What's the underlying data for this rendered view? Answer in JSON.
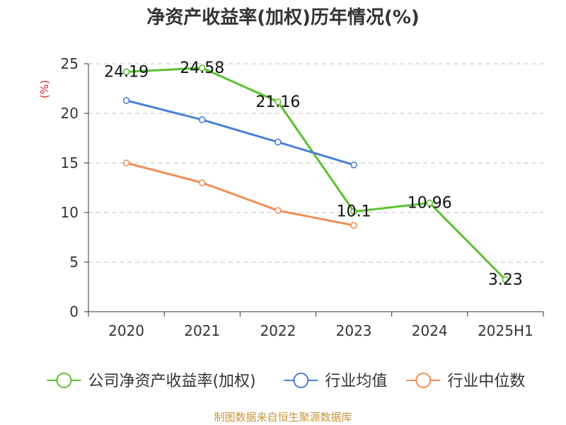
{
  "chart_data": {
    "type": "line",
    "title": "净资产收益率(加权)历年情况(%)",
    "ylabel": "(%)",
    "categories": [
      "2020",
      "2021",
      "2022",
      "2023",
      "2024",
      "2025H1"
    ],
    "ylim": [
      0,
      25
    ],
    "yticks": [
      0,
      5,
      10,
      15,
      20,
      25
    ],
    "grid": true,
    "legend_position": "bottom",
    "series": [
      {
        "name": "公司净资产收益率(加权)",
        "color": "#5cc12f",
        "values": [
          24.19,
          24.58,
          21.16,
          10.1,
          10.96,
          3.23
        ],
        "labels": [
          "24.19",
          "24.58",
          "21.16",
          "10.1",
          "10.96",
          "3.23"
        ]
      },
      {
        "name": "行业均值",
        "color": "#4a7fd8",
        "values": [
          21.3,
          19.35,
          17.1,
          14.8,
          null,
          null
        ]
      },
      {
        "name": "行业中位数",
        "color": "#f28c55",
        "values": [
          15.0,
          13.0,
          10.2,
          8.7,
          null,
          null
        ]
      }
    ]
  },
  "source_note": "制图数据来自恒生聚源数据库"
}
